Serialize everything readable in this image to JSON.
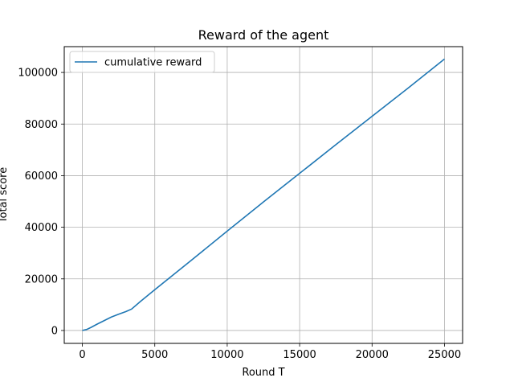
{
  "chart_data": {
    "type": "line",
    "title": "Reward of the agent",
    "xlabel": "Round T",
    "ylabel": "Total score",
    "xlim": [
      -1250,
      26250
    ],
    "ylim": [
      -5000,
      110000
    ],
    "grid": true,
    "legend_position": "top-left",
    "xticks": [
      0,
      5000,
      10000,
      15000,
      20000,
      25000
    ],
    "xtick_labels": [
      "0",
      "5000",
      "10000",
      "15000",
      "20000",
      "25000"
    ],
    "yticks": [
      0,
      20000,
      40000,
      60000,
      80000,
      100000
    ],
    "ytick_labels": [
      "0",
      "20000",
      "40000",
      "60000",
      "80000",
      "100000"
    ],
    "series": [
      {
        "name": "cumulative reward",
        "color": "#1f77b4",
        "x": [
          0,
          300,
          600,
          1000,
          1500,
          2000,
          2500,
          3000,
          3400,
          4000,
          5000,
          7500,
          10000,
          12500,
          15000,
          17500,
          20000,
          22500,
          25000
        ],
        "y": [
          0,
          400,
          1200,
          2400,
          3800,
          5200,
          6300,
          7300,
          8300,
          11200,
          15800,
          27100,
          38500,
          49800,
          60900,
          72000,
          83000,
          94000,
          105200
        ]
      }
    ]
  }
}
